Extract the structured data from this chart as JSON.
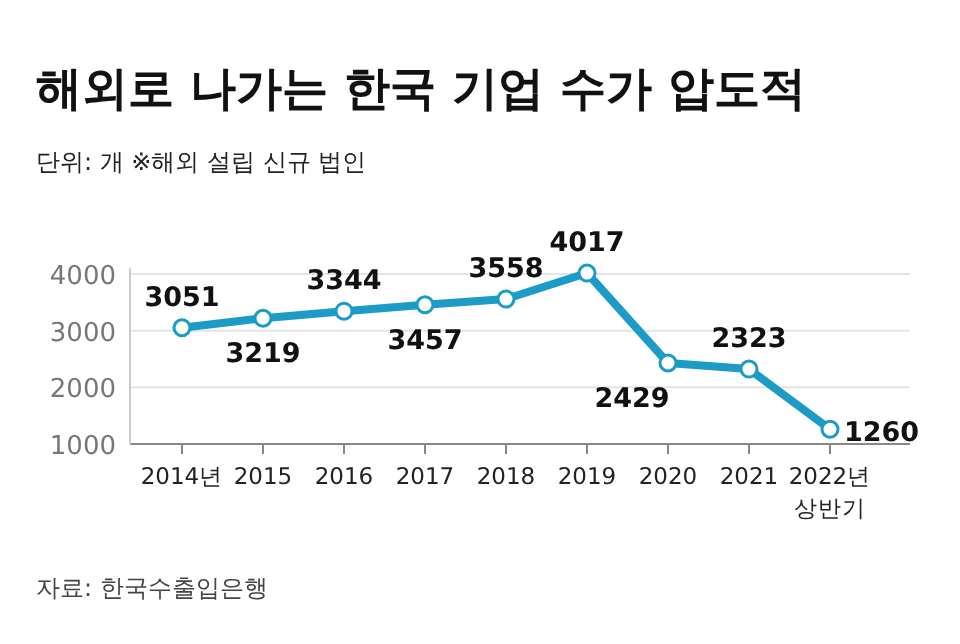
{
  "chart_data": {
    "type": "line",
    "title": "해외로 나가는 한국 기업 수가 압도적",
    "subtitle": "단위: 개  ※해외 설립 신규 법인",
    "categories": [
      "2014년",
      "2015",
      "2016",
      "2017",
      "2018",
      "2019",
      "2020",
      "2021",
      "2022년\n상반기"
    ],
    "series": [
      {
        "color": "#1b9bc6",
        "values": [
          3051,
          3219,
          3344,
          3457,
          3558,
          4017,
          2429,
          2323,
          1260
        ]
      }
    ],
    "ylim": [
      1000,
      4100
    ],
    "yticks": [
      1000,
      2000,
      3000,
      4000
    ],
    "grid": "y",
    "marker": "circle",
    "line_style": "solid",
    "data_labels": true,
    "annotations": [
      "자료: 한국수출입은행"
    ]
  }
}
